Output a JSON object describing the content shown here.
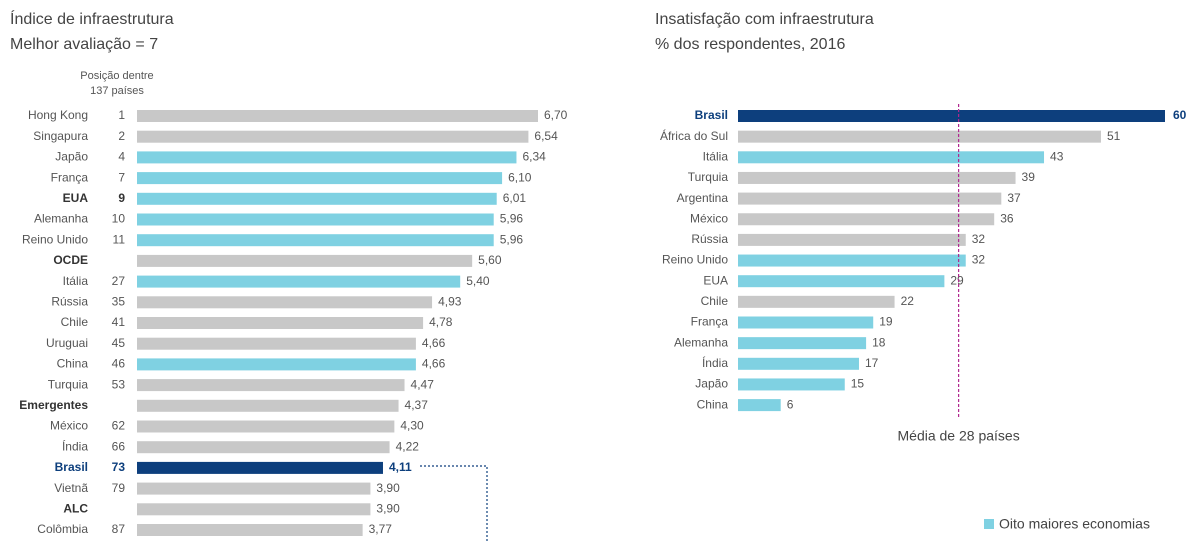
{
  "chart_data": [
    {
      "type": "bar",
      "orientation": "horizontal",
      "title": "Índice de infraestrutura",
      "subtitle": "Melhor avaliação = 7",
      "rank_header": [
        "Posição dentre",
        "137 países"
      ],
      "categories": [
        "Hong Kong",
        "Singapura",
        "Japão",
        "França",
        "EUA",
        "Alemanha",
        "Reino Unido",
        "OCDE",
        "Itália",
        "Rússia",
        "Chile",
        "Uruguai",
        "China",
        "Turquia",
        "Emergentes",
        "México",
        "Índia",
        "Brasil",
        "Vietnã",
        "ALC",
        "Colômbia"
      ],
      "ranks": [
        1,
        2,
        4,
        7,
        9,
        10,
        11,
        null,
        27,
        35,
        41,
        45,
        46,
        53,
        null,
        62,
        66,
        73,
        79,
        null,
        87
      ],
      "values": [
        6.7,
        6.54,
        6.34,
        6.1,
        6.01,
        5.96,
        5.96,
        5.6,
        5.4,
        4.93,
        4.78,
        4.66,
        4.66,
        4.47,
        4.37,
        4.3,
        4.22,
        4.11,
        3.9,
        3.9,
        3.77
      ],
      "value_labels": [
        "6,70",
        "6,54",
        "6,34",
        "6,10",
        "6,01",
        "5,96",
        "5,96",
        "5,60",
        "5,40",
        "4,93",
        "4,78",
        "4,66",
        "4,66",
        "4,47",
        "4,37",
        "4,30",
        "4,22",
        "4,11",
        "3,90",
        "3,90",
        "3,77"
      ],
      "colors": [
        "#c8c8c8",
        "#c8c8c8",
        "#7fd1e2",
        "#7fd1e2",
        "#7fd1e2",
        "#7fd1e2",
        "#7fd1e2",
        "#c8c8c8",
        "#7fd1e2",
        "#c8c8c8",
        "#c8c8c8",
        "#c8c8c8",
        "#7fd1e2",
        "#c8c8c8",
        "#c8c8c8",
        "#c8c8c8",
        "#c8c8c8",
        "#0d3f7d",
        "#c8c8c8",
        "#c8c8c8",
        "#c8c8c8"
      ]
    },
    {
      "type": "bar",
      "orientation": "horizontal",
      "title": "Insatisfação com infraestrutura",
      "subtitle": "% dos respondentes, 2016",
      "categories": [
        "Brasil",
        "África do Sul",
        "Itália",
        "Turquia",
        "Argentina",
        "México",
        "Rússia",
        "Reino Unido",
        "EUA",
        "Chile",
        "França",
        "Alemanha",
        "Índia",
        "Japão",
        "China"
      ],
      "values": [
        60,
        51,
        43,
        39,
        37,
        36,
        32,
        32,
        29,
        22,
        19,
        18,
        17,
        15,
        6
      ],
      "colors": [
        "#0d3f7d",
        "#c8c8c8",
        "#7fd1e2",
        "#c8c8c8",
        "#c8c8c8",
        "#c8c8c8",
        "#c8c8c8",
        "#7fd1e2",
        "#7fd1e2",
        "#c8c8c8",
        "#7fd1e2",
        "#7fd1e2",
        "#7fd1e2",
        "#7fd1e2",
        "#7fd1e2"
      ],
      "reference_value": 31,
      "reference_label": "Média de 28 países",
      "reference_color": "#b0288f",
      "legend": {
        "label": "Oito maiores economias",
        "color": "#7fd1e2"
      }
    }
  ]
}
